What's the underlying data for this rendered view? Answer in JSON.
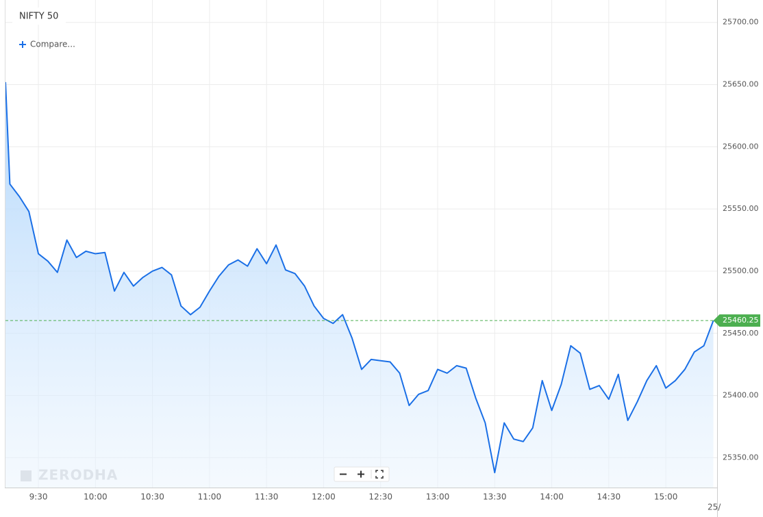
{
  "chart_data": {
    "type": "line",
    "title": "NIFTY 50",
    "compare_label": "Compare...",
    "watermark": "ZERODHA",
    "categories": [
      null,
      null,
      null,
      null,
      "9:30",
      null,
      null,
      null,
      null,
      null,
      "10:00",
      null,
      null,
      null,
      null,
      null,
      "10:30",
      null,
      null,
      null,
      null,
      null,
      "11:00",
      null,
      null,
      null,
      null,
      null,
      "11:30",
      null,
      null,
      null,
      null,
      null,
      "12:00",
      null,
      null,
      null,
      null,
      null,
      "12:30",
      null,
      null,
      null,
      null,
      null,
      "13:00",
      null,
      null,
      null,
      null,
      null,
      "13:30",
      null,
      null,
      null,
      null,
      null,
      "14:00",
      null,
      null,
      null,
      null,
      null,
      "14:30",
      null,
      null,
      null,
      null,
      null,
      "15:00",
      null,
      null,
      null,
      null,
      null
    ],
    "x_end_label": "25/",
    "series": [
      {
        "color": "#1a6fe6",
        "values": [
          25652,
          25570,
          25560,
          25548,
          25514,
          25508,
          25499,
          25525,
          25511,
          25516,
          25514,
          25515,
          25484,
          25499,
          25488,
          25495,
          25500,
          25503,
          25497,
          25472,
          25465,
          25471,
          25484,
          25496,
          25505,
          25509,
          25504,
          25518,
          25506,
          25521,
          25501,
          25498,
          25488,
          25472,
          25462,
          25458,
          25465,
          25446,
          25421,
          25429,
          25428,
          25427,
          25418,
          25392,
          25401,
          25404,
          25421,
          25418,
          25424,
          25422,
          25398,
          25378,
          25338,
          25378,
          25365,
          25363,
          25374,
          25412,
          25388,
          25409,
          25440,
          25434,
          25405,
          25408,
          25397,
          25417,
          25380,
          25395,
          25412,
          25424,
          25406,
          25412,
          25421,
          25435,
          25440,
          25460.25
        ]
      }
    ],
    "ylim": [
      25326,
      25718
    ],
    "yticks": [
      {
        "value": 25350,
        "label": "25350.00"
      },
      {
        "value": 25400,
        "label": "25400.00"
      },
      {
        "value": 25450,
        "label": "25450.00"
      },
      {
        "value": 25500,
        "label": "25500.00"
      },
      {
        "value": 25550,
        "label": "25550.00"
      },
      {
        "value": 25600,
        "label": "25600.00"
      },
      {
        "value": 25650,
        "label": "25650.00"
      },
      {
        "value": 25700,
        "label": "25700.00"
      }
    ],
    "grid": true
  }
}
